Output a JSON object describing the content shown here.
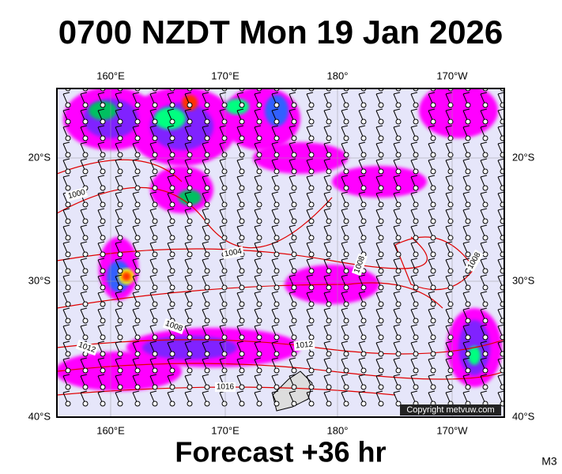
{
  "header": {
    "title": "0700 NZDT Mon 19 Jan 2026"
  },
  "map": {
    "lon_labels": [
      "160°E",
      "170°E",
      "180°",
      "170°W"
    ],
    "lat_labels": [
      "20°S",
      "30°S",
      "40°S"
    ],
    "isobar_labels": [
      "1000",
      "1004",
      "1008",
      "1008",
      "1008",
      "1012",
      "1012",
      "1016"
    ],
    "copyright": "Copyright metvuw.com"
  },
  "footer": {
    "caption": "Forecast +36 hr",
    "code": "M3"
  }
}
